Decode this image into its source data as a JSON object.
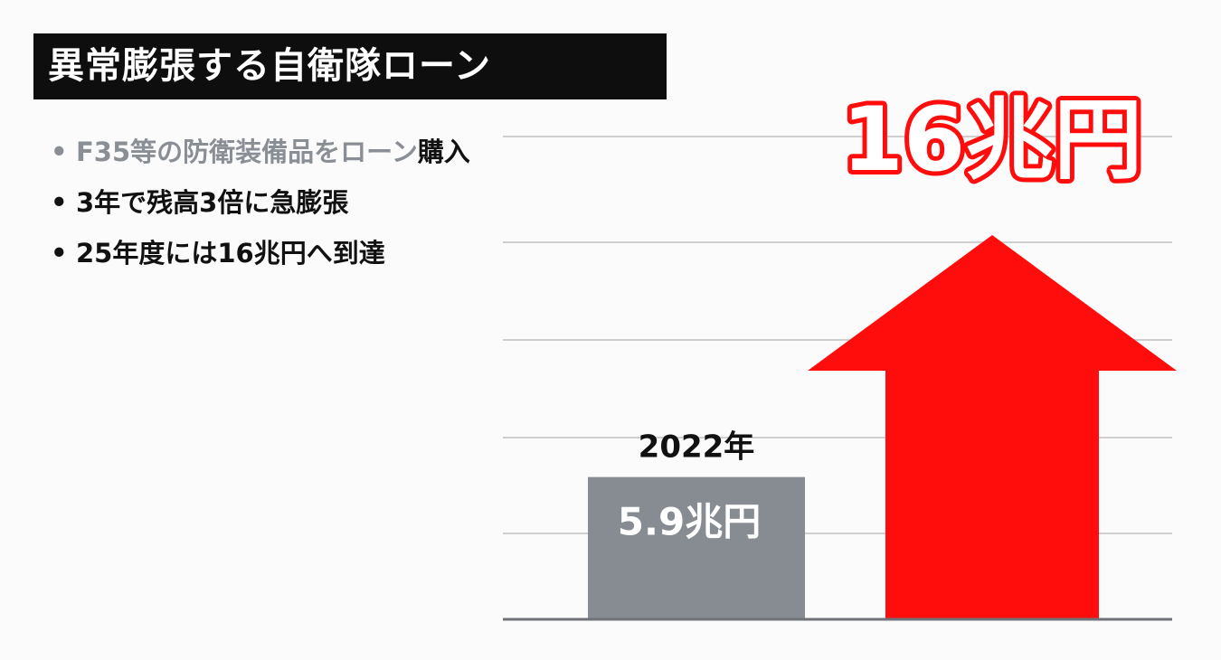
{
  "title": "異常膨張する自衛隊ローン",
  "bullets": [
    {
      "marker": "•",
      "text": "F35等の防衛装備品をローン",
      "tail": "購入"
    },
    {
      "marker": "•",
      "text": "3年で残高3倍に急膨張"
    },
    {
      "marker": "•",
      "text": "25年度には16兆円へ到達"
    }
  ],
  "colors": {
    "title_bg": "#0e0e0e",
    "bar_2022": "#878c92",
    "arrow_16": "#ff0d0d",
    "gridline": "#cfcfcf"
  },
  "chart_data": {
    "type": "bar",
    "unit": "兆円",
    "grid": true,
    "ylim": [
      0,
      16
    ],
    "categories": [
      "2022年",
      ""
    ],
    "values": [
      5.9,
      16
    ],
    "value_labels": [
      "5.9兆円",
      "16兆円"
    ],
    "year_labels": [
      "2022年",
      ""
    ],
    "styles": [
      "bar",
      "arrow"
    ]
  }
}
